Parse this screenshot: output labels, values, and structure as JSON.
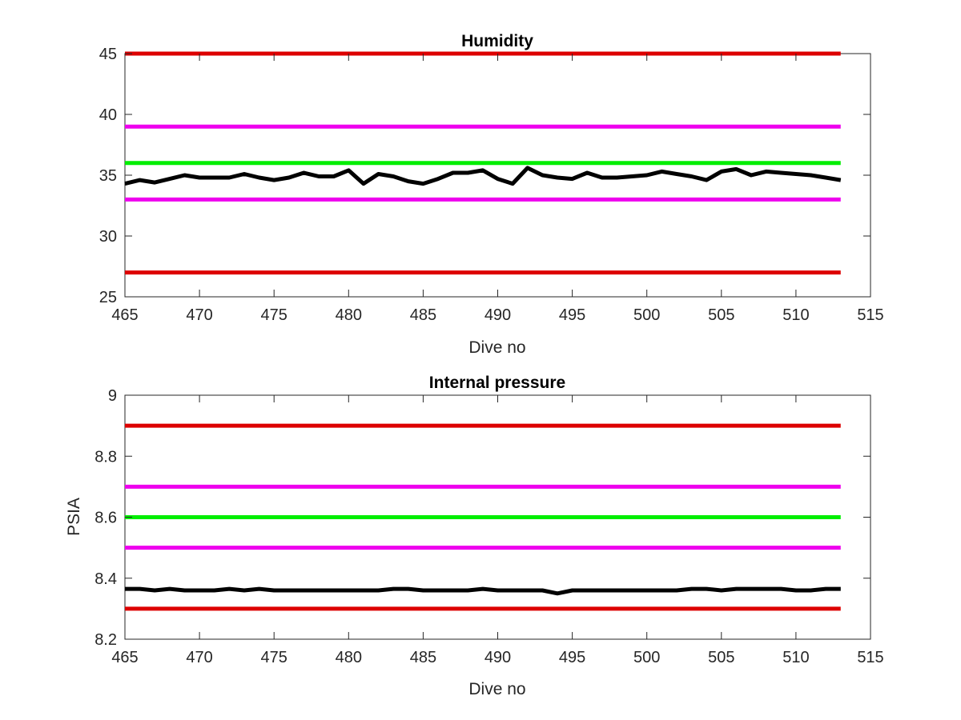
{
  "chart_data": [
    {
      "type": "line",
      "title": "Humidity",
      "xlabel": "Dive no",
      "ylabel": "",
      "xlim": [
        465,
        515
      ],
      "ylim": [
        25,
        45
      ],
      "xticks": [
        "465",
        "470",
        "475",
        "480",
        "485",
        "490",
        "495",
        "500",
        "505",
        "510",
        "515"
      ],
      "yticks": [
        "25",
        "30",
        "35",
        "40",
        "45"
      ],
      "grid": false,
      "limits": [
        {
          "value": 45,
          "color": "#dd0000"
        },
        {
          "value": 39,
          "color": "#ee00ee"
        },
        {
          "value": 36,
          "color": "#00ee00"
        },
        {
          "value": 33,
          "color": "#ee00ee"
        },
        {
          "value": 27,
          "color": "#dd0000"
        }
      ],
      "series": [
        {
          "color": "#000000",
          "x": [
            465,
            466,
            467,
            468,
            469,
            470,
            471,
            472,
            473,
            474,
            475,
            476,
            477,
            478,
            479,
            480,
            481,
            482,
            483,
            484,
            485,
            486,
            487,
            488,
            489,
            490,
            491,
            492,
            493,
            494,
            495,
            496,
            497,
            498,
            499,
            500,
            501,
            502,
            503,
            504,
            505,
            506,
            507,
            508,
            509,
            510,
            511,
            512,
            513
          ],
          "y": [
            34.3,
            34.6,
            34.4,
            34.7,
            35.0,
            34.8,
            34.8,
            34.8,
            35.1,
            34.8,
            34.6,
            34.8,
            35.2,
            34.9,
            34.9,
            35.4,
            34.3,
            35.1,
            34.9,
            34.5,
            34.3,
            34.7,
            35.2,
            35.2,
            35.4,
            34.7,
            34.3,
            35.6,
            35.0,
            34.8,
            34.7,
            35.2,
            34.8,
            34.8,
            34.9,
            35.0,
            35.3,
            35.1,
            34.9,
            34.6,
            35.3,
            35.5,
            35.0,
            35.3,
            35.2,
            35.1,
            35.0,
            34.8,
            34.6
          ]
        }
      ]
    },
    {
      "type": "line",
      "title": "Internal pressure",
      "xlabel": "Dive no",
      "ylabel": "PSIA",
      "xlim": [
        465,
        515
      ],
      "ylim": [
        8.2,
        9
      ],
      "xticks": [
        "465",
        "470",
        "475",
        "480",
        "485",
        "490",
        "495",
        "500",
        "505",
        "510",
        "515"
      ],
      "yticks": [
        "8.2",
        "8.4",
        "8.6",
        "8.8",
        "9"
      ],
      "grid": false,
      "limits": [
        {
          "value": 8.9,
          "color": "#dd0000"
        },
        {
          "value": 8.7,
          "color": "#ee00ee"
        },
        {
          "value": 8.6,
          "color": "#00ee00"
        },
        {
          "value": 8.5,
          "color": "#ee00ee"
        },
        {
          "value": 8.3,
          "color": "#dd0000"
        }
      ],
      "series": [
        {
          "color": "#000000",
          "x": [
            465,
            466,
            467,
            468,
            469,
            470,
            471,
            472,
            473,
            474,
            475,
            476,
            477,
            478,
            479,
            480,
            481,
            482,
            483,
            484,
            485,
            486,
            487,
            488,
            489,
            490,
            491,
            492,
            493,
            494,
            495,
            496,
            497,
            498,
            499,
            500,
            501,
            502,
            503,
            504,
            505,
            506,
            507,
            508,
            509,
            510,
            511,
            512,
            513
          ],
          "y": [
            8.365,
            8.365,
            8.36,
            8.365,
            8.36,
            8.36,
            8.36,
            8.365,
            8.36,
            8.365,
            8.36,
            8.36,
            8.36,
            8.36,
            8.36,
            8.36,
            8.36,
            8.36,
            8.365,
            8.365,
            8.36,
            8.36,
            8.36,
            8.36,
            8.365,
            8.36,
            8.36,
            8.36,
            8.36,
            8.35,
            8.36,
            8.36,
            8.36,
            8.36,
            8.36,
            8.36,
            8.36,
            8.36,
            8.365,
            8.365,
            8.36,
            8.365,
            8.365,
            8.365,
            8.365,
            8.36,
            8.36,
            8.365,
            8.365
          ]
        }
      ]
    }
  ]
}
